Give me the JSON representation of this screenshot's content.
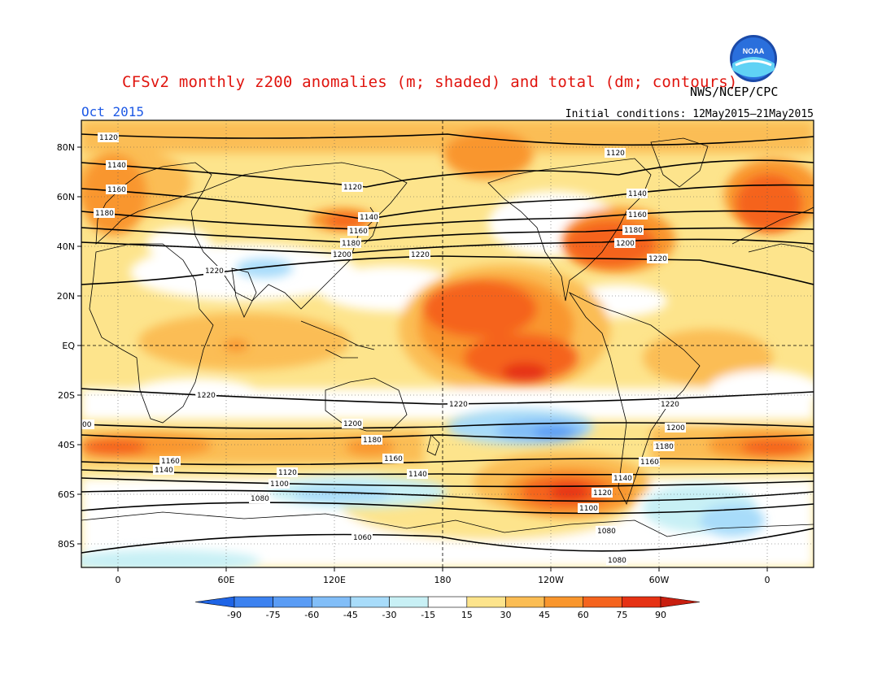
{
  "header": {
    "title": "CFSv2 monthly z200 anomalies (m; shaded) and total (dm; contours)",
    "agency": "NWS/NCEP/CPC",
    "period": "Oct 2015",
    "initial_conditions": "Initial conditions: 12May2015–21May2015",
    "logo_text": "NOAA"
  },
  "axes": {
    "y_ticks": [
      "80N",
      "60N",
      "40N",
      "20N",
      "EQ",
      "20S",
      "40S",
      "60S",
      "80S"
    ],
    "x_ticks": [
      "0",
      "60E",
      "120E",
      "180",
      "120W",
      "60W",
      "0"
    ]
  },
  "contour_labels": [
    "1120",
    "1140",
    "1160",
    "1180",
    "1200",
    "1220",
    "1100",
    "1080",
    "1060",
    "00"
  ],
  "colorbar": {
    "labels": [
      "-90",
      "-75",
      "-60",
      "-45",
      "-30",
      "-15",
      "15",
      "30",
      "45",
      "60",
      "75",
      "90"
    ],
    "colors": [
      "#1e64e6",
      "#3c82f0",
      "#5a9cf5",
      "#82bef8",
      "#a8dcfa",
      "#c8f0f5",
      "#ffffff",
      "#fde48c",
      "#fbbd54",
      "#f9962d",
      "#f5641e",
      "#e63214",
      "#c81e0f"
    ]
  },
  "colors": {
    "title": "#e0140e",
    "period": "#1e5ae6"
  }
}
